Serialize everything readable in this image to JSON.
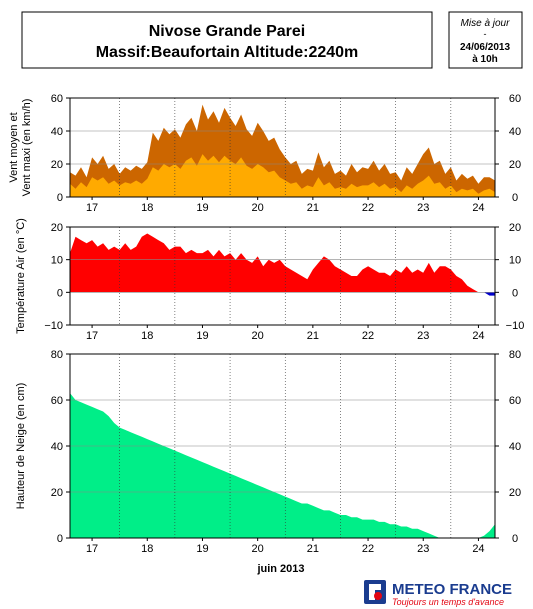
{
  "header": {
    "title_line1": "Nivose Grande Parei",
    "title_line2": "Massif:Beaufortain Altitude:2240m",
    "update_label": "Mise à jour",
    "update_dash": "-",
    "update_date": "24/06/2013",
    "update_time": "à 10h"
  },
  "footer": {
    "month_label": "juin 2013",
    "brand": "METEO FRANCE",
    "tagline": "Toujours un temps d'avance"
  },
  "chart_data": [
    {
      "type": "area",
      "ylabel_line1": "Vent moyen et",
      "ylabel_line2": "Vent maxi (en km/h)",
      "ylim": [
        0,
        60
      ],
      "yticks": [
        "0",
        "20",
        "40",
        "60"
      ],
      "xlim": [
        16.6,
        24.3
      ],
      "xticks": [
        "17",
        "18",
        "19",
        "20",
        "21",
        "22",
        "23",
        "24"
      ],
      "grid": true,
      "colors": {
        "max": "#cc6600",
        "mean": "#ffaa00"
      },
      "series": [
        {
          "key": "max",
          "x": [
            16.6,
            16.7,
            16.8,
            16.9,
            17.0,
            17.1,
            17.2,
            17.3,
            17.4,
            17.5,
            17.6,
            17.7,
            17.8,
            17.9,
            18.0,
            18.1,
            18.2,
            18.3,
            18.4,
            18.5,
            18.6,
            18.7,
            18.8,
            18.9,
            19.0,
            19.1,
            19.2,
            19.3,
            19.4,
            19.5,
            19.6,
            19.7,
            19.8,
            19.9,
            20.0,
            20.1,
            20.2,
            20.3,
            20.4,
            20.5,
            20.6,
            20.7,
            20.8,
            20.9,
            21.0,
            21.1,
            21.2,
            21.3,
            21.4,
            21.5,
            21.6,
            21.7,
            21.8,
            21.9,
            22.0,
            22.1,
            22.2,
            22.3,
            22.4,
            22.5,
            22.6,
            22.7,
            22.8,
            22.9,
            23.0,
            23.1,
            23.2,
            23.3,
            23.4,
            23.5,
            23.6,
            23.7,
            23.8,
            23.9,
            24.0,
            24.1,
            24.2,
            24.3
          ],
          "values": [
            15,
            13,
            18,
            12,
            24,
            20,
            25,
            17,
            20,
            14,
            18,
            16,
            19,
            17,
            21,
            39,
            34,
            42,
            38,
            41,
            36,
            44,
            48,
            40,
            56,
            47,
            52,
            45,
            54,
            48,
            43,
            50,
            41,
            37,
            45,
            40,
            34,
            36,
            29,
            24,
            20,
            22,
            14,
            17,
            16,
            27,
            18,
            22,
            14,
            16,
            13,
            20,
            15,
            18,
            17,
            22,
            16,
            20,
            14,
            15,
            10,
            18,
            14,
            20,
            26,
            30,
            20,
            22,
            14,
            18,
            10,
            14,
            11,
            13,
            8,
            12,
            12,
            10
          ]
        },
        {
          "key": "mean",
          "x": [
            16.6,
            16.7,
            16.8,
            16.9,
            17.0,
            17.1,
            17.2,
            17.3,
            17.4,
            17.5,
            17.6,
            17.7,
            17.8,
            17.9,
            18.0,
            18.1,
            18.2,
            18.3,
            18.4,
            18.5,
            18.6,
            18.7,
            18.8,
            18.9,
            19.0,
            19.1,
            19.2,
            19.3,
            19.4,
            19.5,
            19.6,
            19.7,
            19.8,
            19.9,
            20.0,
            20.1,
            20.2,
            20.3,
            20.4,
            20.5,
            20.6,
            20.7,
            20.8,
            20.9,
            21.0,
            21.1,
            21.2,
            21.3,
            21.4,
            21.5,
            21.6,
            21.7,
            21.8,
            21.9,
            22.0,
            22.1,
            22.2,
            22.3,
            22.4,
            22.5,
            22.6,
            22.7,
            22.8,
            22.9,
            23.0,
            23.1,
            23.2,
            23.3,
            23.4,
            23.5,
            23.6,
            23.7,
            23.8,
            23.9,
            24.0,
            24.1,
            24.2,
            24.3
          ],
          "values": [
            8,
            5,
            9,
            6,
            12,
            10,
            12,
            8,
            10,
            7,
            9,
            8,
            10,
            8,
            11,
            18,
            16,
            20,
            18,
            20,
            17,
            22,
            24,
            19,
            26,
            22,
            25,
            21,
            25,
            22,
            20,
            24,
            19,
            17,
            20,
            18,
            15,
            16,
            12,
            10,
            8,
            9,
            5,
            7,
            6,
            12,
            7,
            9,
            5,
            6,
            5,
            8,
            6,
            7,
            7,
            9,
            6,
            8,
            5,
            6,
            3,
            7,
            5,
            8,
            10,
            13,
            8,
            9,
            5,
            7,
            3,
            5,
            4,
            5,
            2,
            4,
            5,
            3
          ]
        }
      ]
    },
    {
      "type": "area",
      "ylabel": "Température Air (en °C)",
      "ylim": [
        -10,
        20
      ],
      "yticks": [
        "−10",
        "0",
        "10",
        "20"
      ],
      "xlim": [
        16.6,
        24.3
      ],
      "xticks": [
        "17",
        "18",
        "19",
        "20",
        "21",
        "22",
        "23",
        "24"
      ],
      "grid": true,
      "colors": {
        "positive": "#ff0000",
        "negative": "#0000cc"
      },
      "series": [
        {
          "key": "temperature",
          "x": [
            16.6,
            16.7,
            16.8,
            16.9,
            17.0,
            17.1,
            17.2,
            17.3,
            17.4,
            17.5,
            17.6,
            17.7,
            17.8,
            17.9,
            18.0,
            18.1,
            18.2,
            18.3,
            18.4,
            18.5,
            18.6,
            18.7,
            18.8,
            18.9,
            19.0,
            19.1,
            19.2,
            19.3,
            19.4,
            19.5,
            19.6,
            19.7,
            19.8,
            19.9,
            20.0,
            20.1,
            20.2,
            20.3,
            20.4,
            20.5,
            20.6,
            20.7,
            20.8,
            20.9,
            21.0,
            21.1,
            21.2,
            21.3,
            21.4,
            21.5,
            21.6,
            21.7,
            21.8,
            21.9,
            22.0,
            22.1,
            22.2,
            22.3,
            22.4,
            22.5,
            22.6,
            22.7,
            22.8,
            22.9,
            23.0,
            23.1,
            23.2,
            23.3,
            23.4,
            23.5,
            23.6,
            23.7,
            23.8,
            23.9,
            24.0,
            24.1,
            24.2,
            24.3
          ],
          "values": [
            12,
            17,
            16,
            15,
            16,
            14,
            15,
            13,
            14,
            13,
            15,
            13,
            14,
            17,
            18,
            17,
            16,
            15,
            13,
            14,
            14,
            12,
            13,
            12,
            12,
            13,
            11,
            13,
            11,
            12,
            10,
            12,
            10,
            9,
            11,
            8,
            10,
            9,
            10,
            8,
            7,
            6,
            5,
            4,
            7,
            9,
            11,
            10,
            8,
            7,
            6,
            5,
            5,
            7,
            8,
            7,
            6,
            6,
            5,
            7,
            6,
            8,
            6,
            7,
            6,
            9,
            6,
            8,
            8,
            7,
            5,
            4,
            2,
            1,
            0,
            0,
            -1,
            -1
          ]
        }
      ]
    },
    {
      "type": "area",
      "ylabel": "Hauteur de Neige (en cm)",
      "ylim": [
        0,
        80
      ],
      "yticks": [
        "0",
        "20",
        "40",
        "60",
        "80"
      ],
      "xlim": [
        16.6,
        24.3
      ],
      "xticks": [
        "17",
        "18",
        "19",
        "20",
        "21",
        "22",
        "23",
        "24"
      ],
      "grid": true,
      "colors": {
        "snow": "#00ee88"
      },
      "series": [
        {
          "key": "snow_depth",
          "x": [
            16.6,
            16.7,
            16.8,
            16.9,
            17.0,
            17.1,
            17.2,
            17.3,
            17.4,
            17.5,
            17.6,
            17.7,
            17.8,
            17.9,
            18.0,
            18.1,
            18.2,
            18.3,
            18.4,
            18.5,
            18.6,
            18.7,
            18.8,
            18.9,
            19.0,
            19.1,
            19.2,
            19.3,
            19.4,
            19.5,
            19.6,
            19.7,
            19.8,
            19.9,
            20.0,
            20.1,
            20.2,
            20.3,
            20.4,
            20.5,
            20.6,
            20.7,
            20.8,
            20.9,
            21.0,
            21.1,
            21.2,
            21.3,
            21.4,
            21.5,
            21.6,
            21.7,
            21.8,
            21.9,
            22.0,
            22.1,
            22.2,
            22.3,
            22.4,
            22.5,
            22.6,
            22.7,
            22.8,
            22.9,
            23.0,
            23.1,
            23.2,
            23.3,
            23.4,
            23.5,
            23.6,
            23.7,
            23.8,
            23.9,
            24.0,
            24.1,
            24.2,
            24.3
          ],
          "values": [
            63,
            60,
            59,
            58,
            57,
            56,
            55,
            53,
            50,
            48,
            47,
            46,
            45,
            44,
            43,
            42,
            41,
            40,
            39,
            38,
            37,
            36,
            35,
            34,
            33,
            32,
            31,
            30,
            29,
            28,
            27,
            26,
            25,
            24,
            23,
            22,
            21,
            20,
            19,
            18,
            17,
            16,
            15,
            15,
            14,
            13,
            12,
            12,
            11,
            10,
            10,
            9,
            9,
            8,
            8,
            8,
            7,
            7,
            6,
            6,
            5,
            5,
            4,
            4,
            3,
            2,
            1,
            0,
            0,
            0,
            0,
            0,
            0,
            0,
            0,
            1,
            3,
            6
          ]
        }
      ]
    }
  ]
}
